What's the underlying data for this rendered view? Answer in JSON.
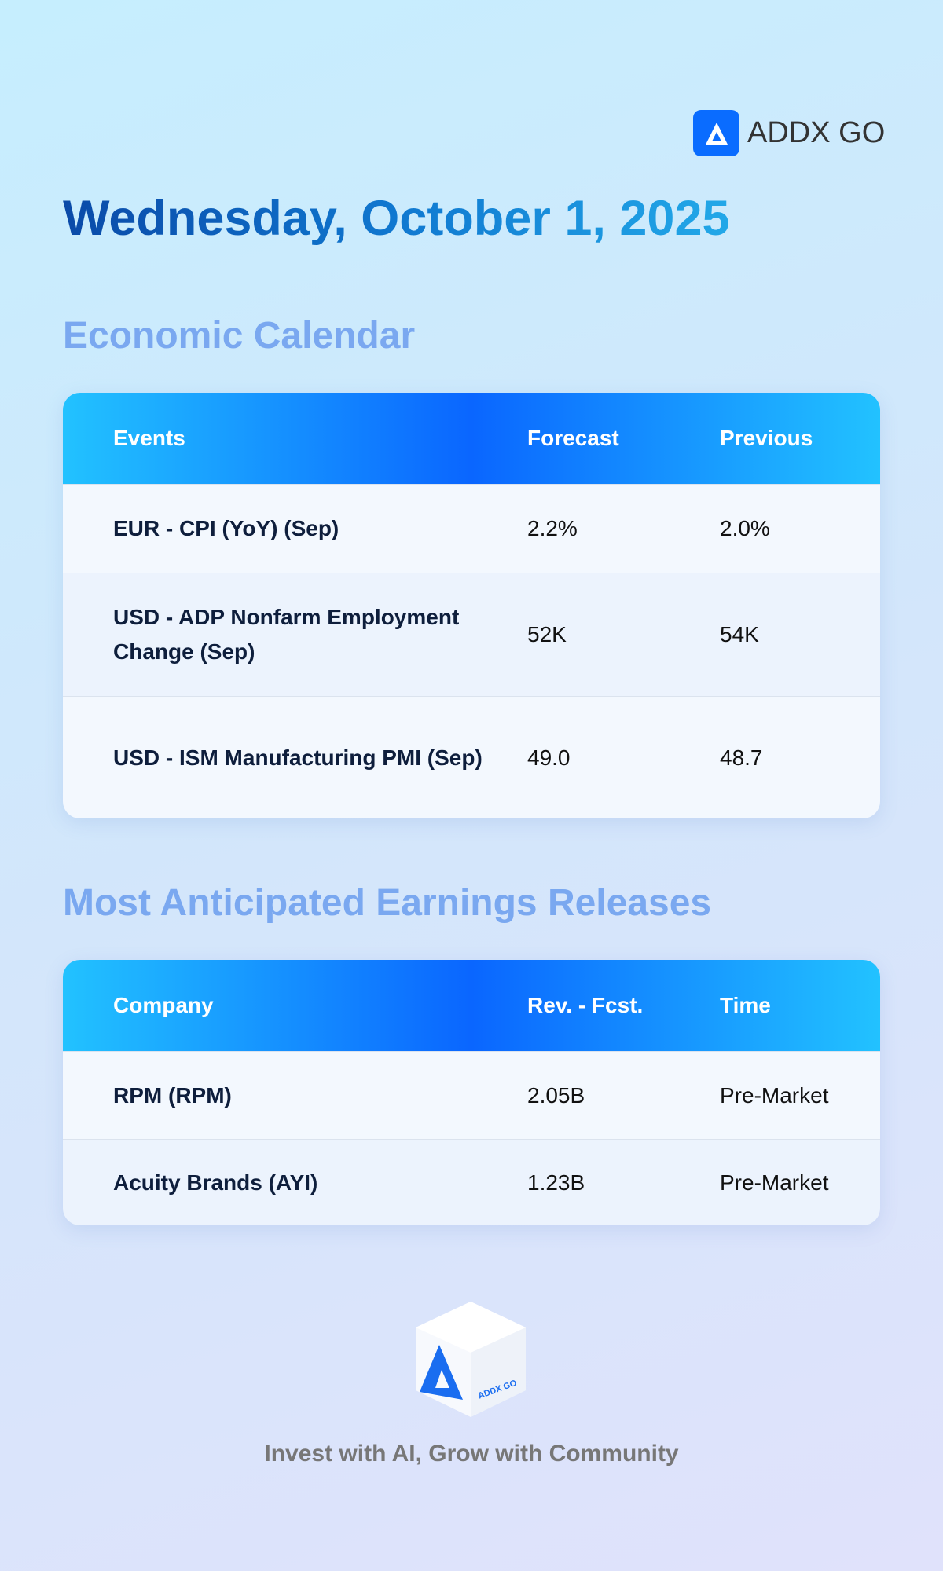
{
  "header": {
    "brand": "ADDX GO",
    "date": "Wednesday, October 1, 2025"
  },
  "economic_calendar": {
    "title": "Economic Calendar",
    "columns": [
      "Events",
      "Forecast",
      "Previous"
    ],
    "rows": [
      [
        "EUR - CPI (YoY) (Sep)",
        "2.2%",
        "2.0%"
      ],
      [
        "USD - ADP Nonfarm Employment Change (Sep)",
        "52K",
        "54K"
      ],
      [
        "USD - ISM Manufacturing PMI (Sep)",
        "49.0",
        "48.7"
      ]
    ]
  },
  "earnings": {
    "title": "Most Anticipated Earnings Releases",
    "columns": [
      "Company",
      "Rev. - Fcst.",
      "Time"
    ],
    "rows": [
      [
        "RPM (RPM)",
        "2.05B",
        "Pre-Market"
      ],
      [
        "Acuity Brands (AYI)",
        "1.23B",
        "Pre-Market"
      ]
    ]
  },
  "footer": {
    "tagline": "Invest with AI, Grow with Community"
  }
}
